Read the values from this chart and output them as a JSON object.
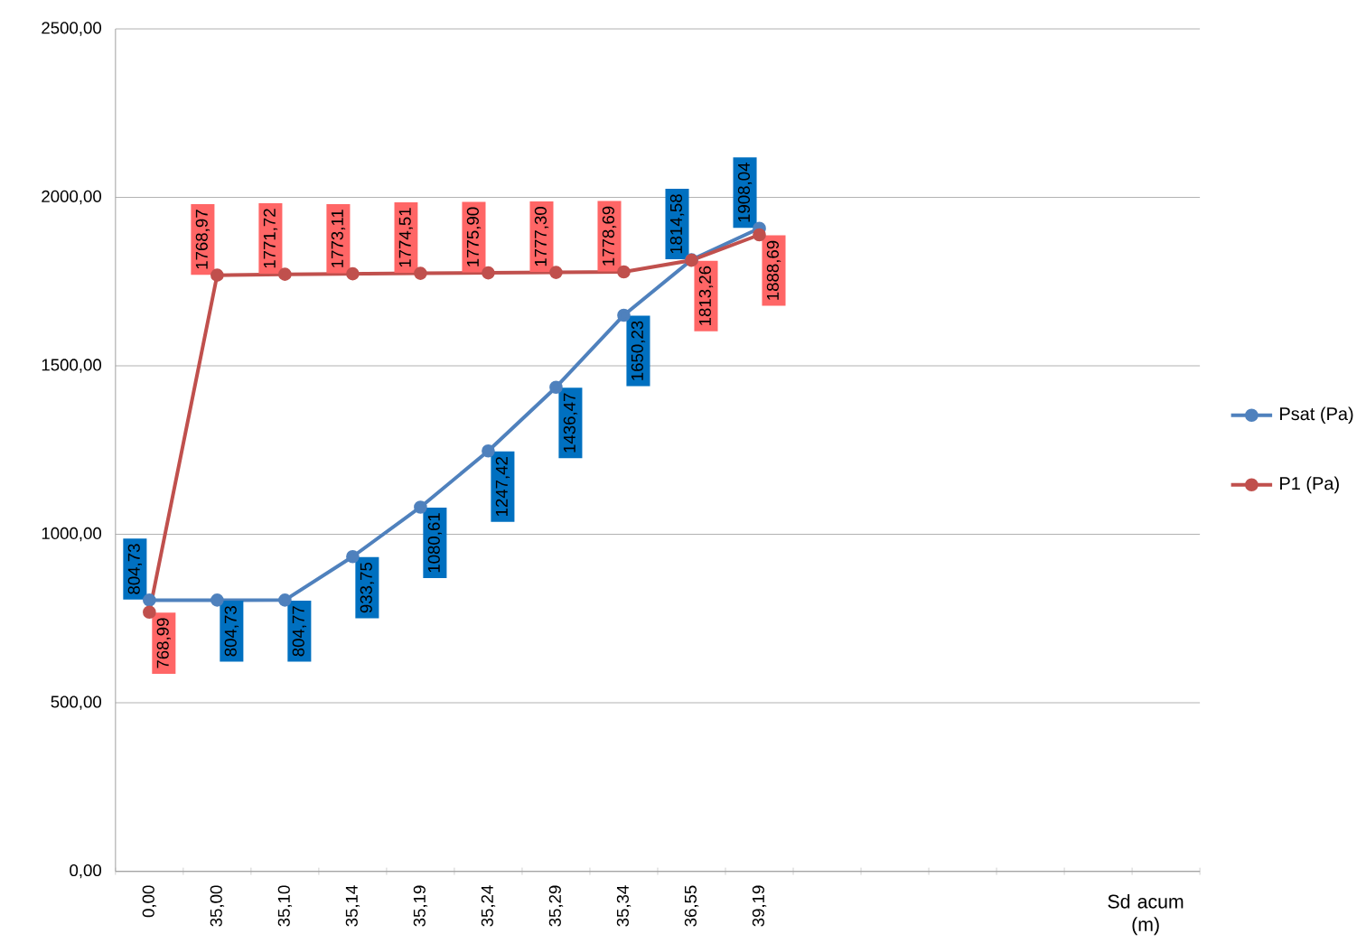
{
  "chart_data": {
    "type": "line",
    "xlabel": "Sd acum (m)",
    "categories": [
      "0,00",
      "35,00",
      "35,10",
      "35,14",
      "35,19",
      "35,24",
      "35,29",
      "35,34",
      "36,55",
      "39,19",
      null,
      null,
      null,
      null,
      null,
      null
    ],
    "series": [
      {
        "name": "Psat (Pa)",
        "color": "#4f81bd",
        "values": [
          804.73,
          804.73,
          804.77,
          933.75,
          1080.61,
          1247.42,
          1436.47,
          1650.23,
          1814.58,
          1908.04,
          null,
          null,
          null,
          null,
          null,
          null
        ],
        "value_labels": [
          "804,73",
          "804,73",
          "804,77",
          "933,75",
          "1080,61",
          "1247,42",
          "1436,47",
          "1650,23",
          "1814,58",
          "1908,04",
          null,
          null,
          null,
          null,
          null,
          null
        ]
      },
      {
        "name": "P1 (Pa)",
        "color": "#c0504d",
        "values": [
          768.99,
          1768.97,
          1771.72,
          1773.11,
          1774.51,
          1775.9,
          1777.3,
          1778.69,
          1813.26,
          1888.69,
          null,
          null,
          null,
          null,
          null,
          null
        ],
        "value_labels": [
          "768,99",
          "1768,97",
          "1771,72",
          "1773,11",
          "1774,51",
          "1775,90",
          "1777,30",
          "1778,69",
          "1813,26",
          "1888,69",
          null,
          null,
          null,
          null,
          null,
          null
        ]
      }
    ],
    "ylim": [
      0,
      2500
    ],
    "yticks": [
      {
        "value": 0,
        "label": "0,00"
      },
      {
        "value": 500,
        "label": "500,00"
      },
      {
        "value": 1000,
        "label": "1000,00"
      },
      {
        "value": 1500,
        "label": "1500,00"
      },
      {
        "value": 2000,
        "label": "2000,00"
      },
      {
        "value": 2500,
        "label": "2500,00"
      }
    ],
    "grid": "y",
    "legend": "right",
    "marker": "circle",
    "line_style": "solid"
  }
}
